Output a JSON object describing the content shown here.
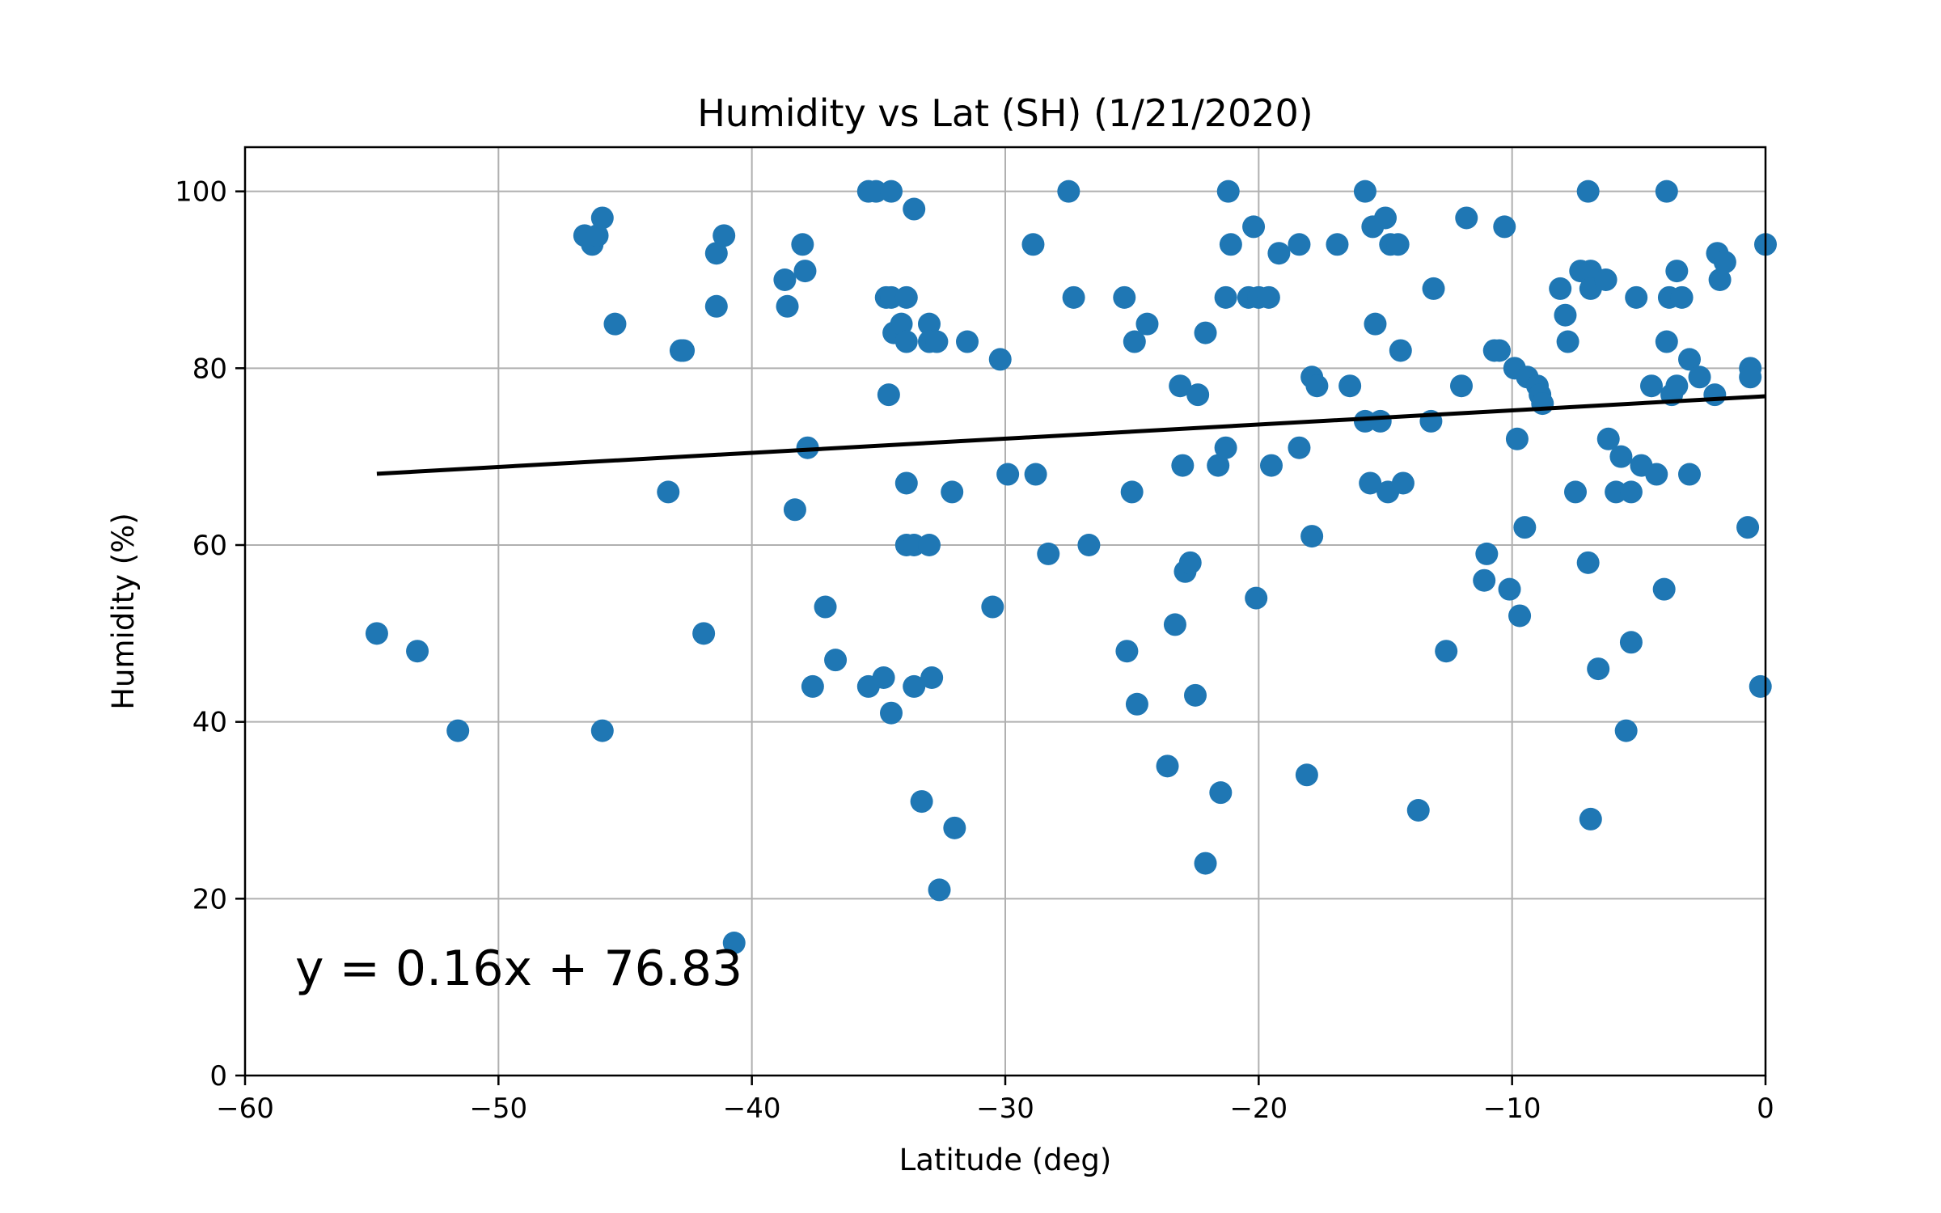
{
  "chart_data": {
    "type": "scatter",
    "title": "Humidity vs Lat (SH) (1/21/2020)",
    "xlabel": "Latitude (deg)",
    "ylabel": "Humidity (%)",
    "xlim": [
      -60,
      0
    ],
    "ylim": [
      0,
      105
    ],
    "xticks": [
      -60,
      -50,
      -40,
      -30,
      -20,
      -10,
      0
    ],
    "xtick_labels": [
      "−60",
      "−50",
      "−40",
      "−30",
      "−20",
      "−10",
      "0"
    ],
    "yticks": [
      0,
      20,
      40,
      60,
      80,
      100
    ],
    "ytick_labels": [
      "0",
      "20",
      "40",
      "60",
      "80",
      "100"
    ],
    "grid": true,
    "marker_color": "#1f77b4",
    "line_color": "#000000",
    "annotation": "y = 0.16x + 76.83",
    "regression": {
      "slope": 0.16,
      "intercept": 76.83,
      "x_range": [
        -54.8,
        0
      ]
    },
    "points": [
      [
        -54.8,
        50
      ],
      [
        -53.2,
        48
      ],
      [
        -51.6,
        39
      ],
      [
        -46.6,
        95
      ],
      [
        -46.3,
        94
      ],
      [
        -46.1,
        95
      ],
      [
        -45.9,
        97
      ],
      [
        -45.9,
        39
      ],
      [
        -45.4,
        85
      ],
      [
        -43.3,
        66
      ],
      [
        -42.8,
        82
      ],
      [
        -42.7,
        82
      ],
      [
        -41.9,
        50
      ],
      [
        -41.4,
        93
      ],
      [
        -41.4,
        87
      ],
      [
        -41.1,
        95
      ],
      [
        -40.7,
        15
      ],
      [
        -38.7,
        90
      ],
      [
        -38.6,
        87
      ],
      [
        -38.3,
        64
      ],
      [
        -38.0,
        94
      ],
      [
        -37.9,
        91
      ],
      [
        -37.8,
        71
      ],
      [
        -37.6,
        44
      ],
      [
        -37.1,
        53
      ],
      [
        -36.7,
        47
      ],
      [
        -35.4,
        100
      ],
      [
        -35.1,
        100
      ],
      [
        -34.5,
        100
      ],
      [
        -35.4,
        44
      ],
      [
        -34.8,
        45
      ],
      [
        -34.7,
        88
      ],
      [
        -34.5,
        88
      ],
      [
        -34.4,
        84
      ],
      [
        -34.6,
        77
      ],
      [
        -34.5,
        41
      ],
      [
        -34.1,
        85
      ],
      [
        -33.9,
        88
      ],
      [
        -33.9,
        83
      ],
      [
        -33.9,
        67
      ],
      [
        -33.9,
        60
      ],
      [
        -33.6,
        98
      ],
      [
        -33.6,
        60
      ],
      [
        -33.6,
        44
      ],
      [
        -33.3,
        31
      ],
      [
        -33.0,
        85
      ],
      [
        -33.0,
        83
      ],
      [
        -33.0,
        60
      ],
      [
        -32.9,
        45
      ],
      [
        -32.7,
        83
      ],
      [
        -32.6,
        21
      ],
      [
        -32.1,
        66
      ],
      [
        -32.0,
        28
      ],
      [
        -31.5,
        83
      ],
      [
        -30.5,
        53
      ],
      [
        -30.2,
        81
      ],
      [
        -29.9,
        68
      ],
      [
        -28.9,
        94
      ],
      [
        -28.8,
        68
      ],
      [
        -28.3,
        59
      ],
      [
        -27.5,
        100
      ],
      [
        -27.3,
        88
      ],
      [
        -26.7,
        60
      ],
      [
        -25.3,
        88
      ],
      [
        -25.2,
        48
      ],
      [
        -25.0,
        66
      ],
      [
        -24.9,
        83
      ],
      [
        -24.8,
        42
      ],
      [
        -24.4,
        85
      ],
      [
        -23.6,
        35
      ],
      [
        -23.3,
        51
      ],
      [
        -23.1,
        78
      ],
      [
        -23.0,
        69
      ],
      [
        -22.9,
        57
      ],
      [
        -22.7,
        58
      ],
      [
        -22.5,
        43
      ],
      [
        -22.4,
        77
      ],
      [
        -22.1,
        84
      ],
      [
        -22.1,
        24
      ],
      [
        -21.6,
        69
      ],
      [
        -21.5,
        32
      ],
      [
        -21.3,
        88
      ],
      [
        -21.3,
        71
      ],
      [
        -21.2,
        100
      ],
      [
        -21.1,
        94
      ],
      [
        -20.4,
        88
      ],
      [
        -20.2,
        96
      ],
      [
        -20.1,
        54
      ],
      [
        -20.0,
        88
      ],
      [
        -19.6,
        88
      ],
      [
        -19.5,
        69
      ],
      [
        -19.2,
        93
      ],
      [
        -18.4,
        94
      ],
      [
        -18.4,
        71
      ],
      [
        -18.1,
        34
      ],
      [
        -17.9,
        79
      ],
      [
        -17.9,
        61
      ],
      [
        -17.7,
        78
      ],
      [
        -16.9,
        94
      ],
      [
        -16.4,
        78
      ],
      [
        -15.8,
        100
      ],
      [
        -15.8,
        74
      ],
      [
        -15.6,
        67
      ],
      [
        -15.5,
        96
      ],
      [
        -15.4,
        85
      ],
      [
        -15.2,
        74
      ],
      [
        -15.0,
        97
      ],
      [
        -14.9,
        66
      ],
      [
        -14.8,
        94
      ],
      [
        -14.5,
        94
      ],
      [
        -14.4,
        82
      ],
      [
        -14.3,
        67
      ],
      [
        -13.7,
        30
      ],
      [
        -13.2,
        74
      ],
      [
        -13.1,
        89
      ],
      [
        -12.6,
        48
      ],
      [
        -11.8,
        97
      ],
      [
        -12.0,
        78
      ],
      [
        -11.1,
        56
      ],
      [
        -11.0,
        59
      ],
      [
        -10.7,
        82
      ],
      [
        -10.5,
        82
      ],
      [
        -10.3,
        96
      ],
      [
        -10.1,
        55
      ],
      [
        -9.9,
        80
      ],
      [
        -9.8,
        72
      ],
      [
        -9.7,
        52
      ],
      [
        -9.5,
        62
      ],
      [
        -9.4,
        79
      ],
      [
        -9.0,
        78
      ],
      [
        -8.9,
        77
      ],
      [
        -8.8,
        76
      ],
      [
        -8.1,
        89
      ],
      [
        -7.9,
        86
      ],
      [
        -7.8,
        83
      ],
      [
        -7.5,
        66
      ],
      [
        -7.3,
        91
      ],
      [
        -7.0,
        100
      ],
      [
        -7.0,
        58
      ],
      [
        -6.9,
        91
      ],
      [
        -6.9,
        89
      ],
      [
        -6.9,
        29
      ],
      [
        -6.6,
        46
      ],
      [
        -6.3,
        90
      ],
      [
        -6.2,
        72
      ],
      [
        -5.9,
        66
      ],
      [
        -5.7,
        70
      ],
      [
        -5.5,
        39
      ],
      [
        -5.3,
        66
      ],
      [
        -5.3,
        49
      ],
      [
        -5.1,
        88
      ],
      [
        -4.9,
        69
      ],
      [
        -4.5,
        78
      ],
      [
        -4.3,
        68
      ],
      [
        -4.0,
        55
      ],
      [
        -3.9,
        100
      ],
      [
        -3.8,
        88
      ],
      [
        -3.9,
        83
      ],
      [
        -3.7,
        77
      ],
      [
        -3.5,
        91
      ],
      [
        -3.5,
        78
      ],
      [
        -3.3,
        88
      ],
      [
        -3.0,
        81
      ],
      [
        -3.0,
        68
      ],
      [
        -2.6,
        79
      ],
      [
        -2.0,
        77
      ],
      [
        -1.9,
        93
      ],
      [
        -1.8,
        90
      ],
      [
        -1.6,
        92
      ],
      [
        -0.7,
        62
      ],
      [
        -0.6,
        80
      ],
      [
        -0.6,
        79
      ],
      [
        -0.2,
        44
      ],
      [
        0.0,
        94
      ]
    ]
  }
}
